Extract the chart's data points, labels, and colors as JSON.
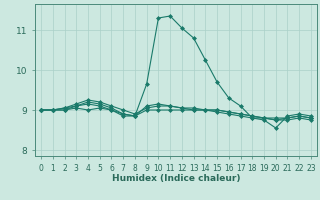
{
  "xlabel": "Humidex (Indice chaleur)",
  "background_color": "#cce8e0",
  "grid_color": "#aad0c8",
  "line_color": "#1a7a6a",
  "xlim": [
    -0.5,
    23.5
  ],
  "ylim": [
    7.85,
    11.65
  ],
  "yticks": [
    8,
    9,
    10,
    11
  ],
  "xticks": [
    0,
    1,
    2,
    3,
    4,
    5,
    6,
    7,
    8,
    9,
    10,
    11,
    12,
    13,
    14,
    15,
    16,
    17,
    18,
    19,
    20,
    21,
    22,
    23
  ],
  "lines": [
    [
      9.0,
      9.0,
      9.05,
      9.1,
      9.15,
      9.1,
      9.0,
      8.85,
      8.85,
      9.65,
      11.3,
      11.35,
      11.05,
      10.8,
      10.25,
      9.7,
      9.3,
      9.1,
      8.8,
      8.75,
      8.55,
      8.85,
      8.9,
      8.85
    ],
    [
      9.0,
      9.0,
      9.0,
      9.05,
      9.0,
      9.05,
      9.0,
      8.9,
      8.85,
      9.0,
      9.0,
      9.0,
      9.0,
      9.0,
      9.0,
      9.0,
      8.95,
      8.9,
      8.85,
      8.8,
      8.75,
      8.75,
      8.8,
      8.75
    ],
    [
      9.0,
      9.0,
      9.0,
      9.1,
      9.2,
      9.15,
      9.05,
      8.9,
      8.85,
      9.1,
      9.15,
      9.1,
      9.05,
      9.0,
      9.0,
      8.95,
      8.9,
      8.85,
      8.8,
      8.8,
      8.75,
      8.8,
      8.85,
      8.8
    ],
    [
      9.0,
      9.0,
      9.05,
      9.15,
      9.25,
      9.2,
      9.1,
      9.0,
      8.9,
      9.05,
      9.1,
      9.1,
      9.05,
      9.05,
      9.0,
      9.0,
      8.95,
      8.9,
      8.85,
      8.8,
      8.8,
      8.8,
      8.85,
      8.8
    ]
  ],
  "marker": "D",
  "markersize": 2.0,
  "linewidth": 0.8,
  "tick_fontsize": 5.5,
  "xlabel_fontsize": 6.5,
  "tick_color": "#2a6a5a",
  "spine_color": "#4a8a7a"
}
